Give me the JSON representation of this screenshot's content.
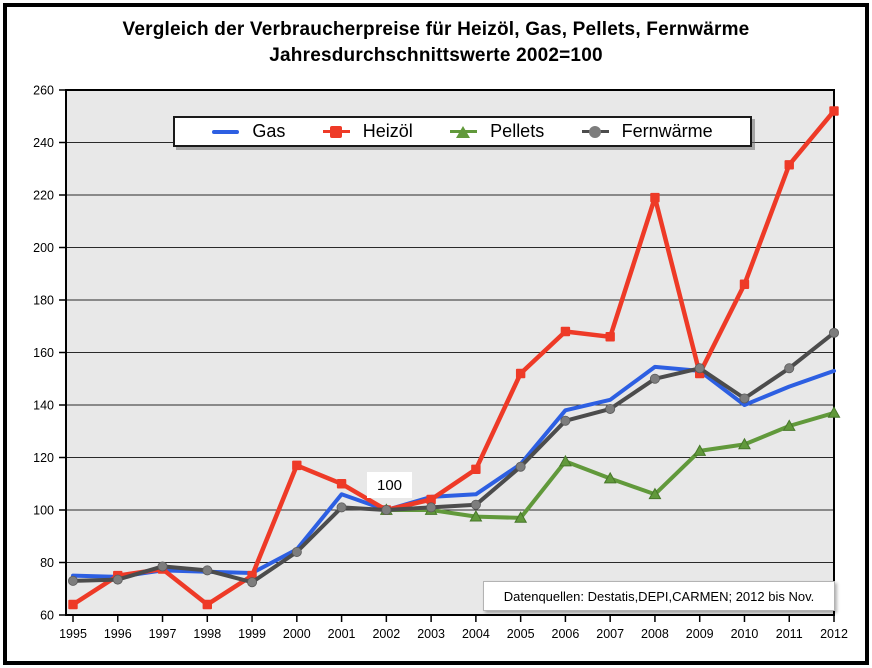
{
  "chart_data": {
    "type": "line",
    "title": "Vergleich der Verbraucherpreise für Heizöl, Gas, Pellets, Fernwärme",
    "subtitle": "Jahresdurchschnittswerte 2002=100",
    "x": [
      1995,
      1996,
      1997,
      1998,
      1999,
      2000,
      2001,
      2002,
      2003,
      2004,
      2005,
      2006,
      2007,
      2008,
      2009,
      2010,
      2011,
      2012
    ],
    "ylim": [
      60,
      260
    ],
    "y_tick_step": 20,
    "grid": true,
    "plot_background": "#e8e8e8",
    "legend_position": "top-center-inside",
    "series": [
      {
        "id": "gas",
        "name": "Gas",
        "color": "#2d5fe2",
        "marker": "none",
        "marker_color": "#2d5fe2",
        "values": [
          75,
          74.5,
          77,
          76.5,
          76,
          85,
          106,
          100,
          105,
          106,
          117.5,
          138,
          142,
          154.5,
          153,
          140,
          147,
          153
        ]
      },
      {
        "id": "heizoel",
        "name": "Heizöl",
        "color": "#ee3a27",
        "marker": "square",
        "marker_color": "#ee3a27",
        "values": [
          64,
          75,
          77.5,
          64,
          75,
          117,
          110,
          100,
          104,
          115.5,
          152,
          168,
          166,
          219,
          152,
          186,
          231.5,
          252
        ]
      },
      {
        "id": "pellets",
        "name": "Pellets",
        "color": "#61993b",
        "marker": "triangle",
        "marker_color": "#61993b",
        "values": [
          null,
          null,
          null,
          null,
          null,
          null,
          null,
          100,
          100,
          97.5,
          97,
          118.5,
          112,
          106,
          122.5,
          125,
          132,
          137
        ]
      },
      {
        "id": "fernwaerme",
        "name": "Fernwärme",
        "color": "#4c4c4c",
        "marker": "circle",
        "marker_color": "#7d7d7d",
        "values": [
          73,
          73.5,
          78.5,
          77,
          72.5,
          84,
          101,
          100,
          101,
          102,
          116.5,
          134,
          138.5,
          150,
          154,
          142.5,
          154,
          167.5
        ]
      }
    ],
    "annotation": {
      "text": "100",
      "x": 2002,
      "y": 100
    },
    "source_note": "Datenquellen: Destatis,DEPI,CARMEN; 2012 bis Nov."
  }
}
